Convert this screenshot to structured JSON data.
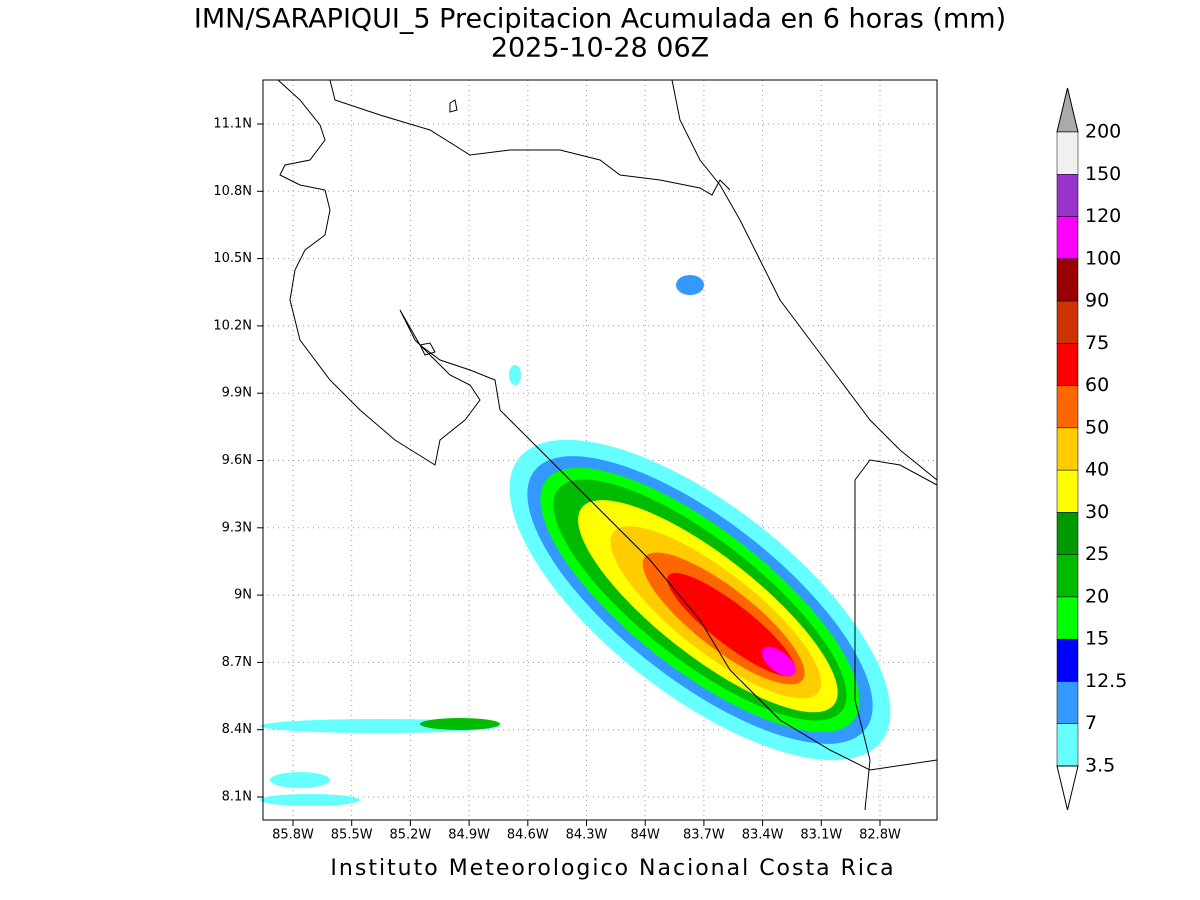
{
  "title": "IMN/SARAPIQUI_5 Precipitacion Acumulada en 6 horas (mm)",
  "subtitle": "2025-10-28 06Z",
  "footer": "Instituto Meteorologico Nacional Costa Rica",
  "lon_ticks": [
    "85.8W",
    "85.5W",
    "85.2W",
    "84.9W",
    "84.6W",
    "84.3W",
    "84W",
    "83.7W",
    "83.4W",
    "83.1W",
    "82.8W"
  ],
  "lat_ticks": [
    "11.1N",
    "10.8N",
    "10.5N",
    "10.2N",
    "9.9N",
    "9.6N",
    "9.3N",
    "9N",
    "8.7N",
    "8.4N",
    "8.1N"
  ],
  "colorbar": {
    "levels": [
      200,
      150,
      120,
      100,
      90,
      75,
      60,
      50,
      40,
      30,
      25,
      20,
      15,
      12.5,
      7,
      3.5
    ],
    "colors": [
      "#f0f0f0",
      "#9933cc",
      "#ff00ff",
      "#990000",
      "#cc3300",
      "#ff0000",
      "#ff6600",
      "#ffcc00",
      "#ffff00",
      "#009900",
      "#00bb00",
      "#00ff00",
      "#0000ff",
      "#3399ff",
      "#66ffff"
    ],
    "over_color": "#aaaaaa",
    "under_color": "#ffffff"
  }
}
